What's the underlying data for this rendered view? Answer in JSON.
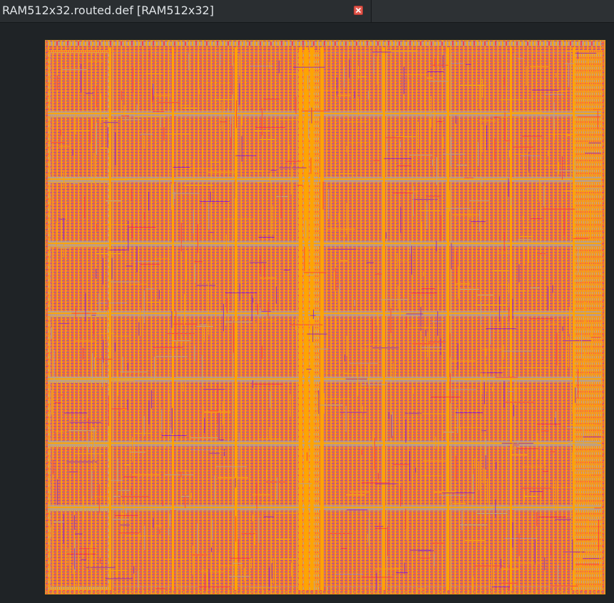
{
  "tab": {
    "title": "RAM512x32.routed.def [RAM512x32]",
    "close_icon": "close-icon"
  },
  "layout": {
    "colors": {
      "background": "#1f2326",
      "die_border": "#e6a21a",
      "fill": "#e97f3b",
      "metal_orange": "#ffa400",
      "metal_gray": "#b0a39c",
      "metal_purple": "#8a23c8",
      "metal_red": "#ff3b3b"
    }
  }
}
